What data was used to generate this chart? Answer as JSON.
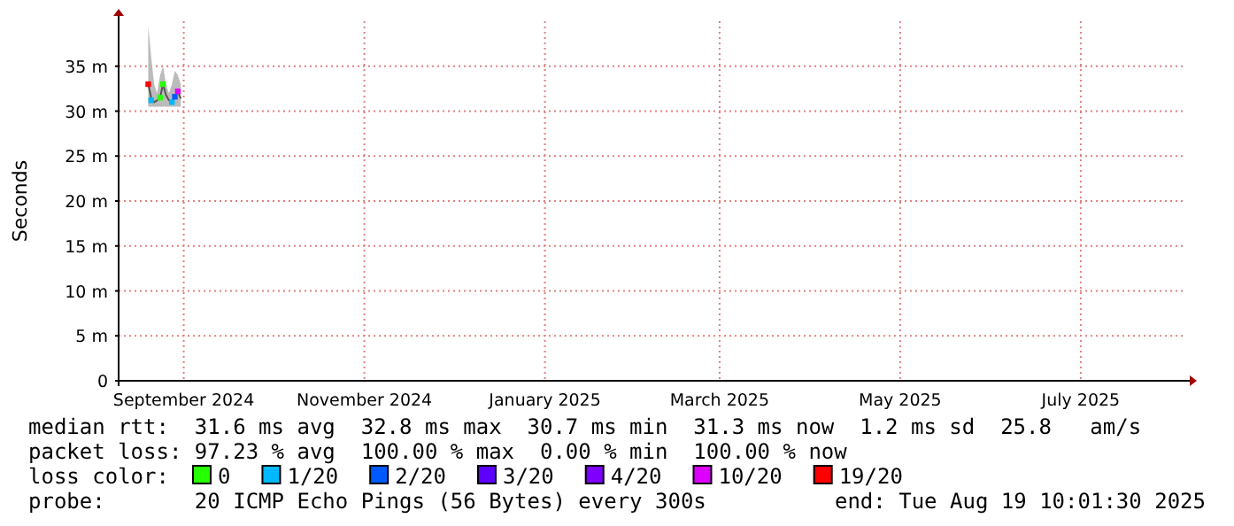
{
  "chart_data": {
    "type": "line",
    "ylabel": "Seconds",
    "legend_title": "loss color:",
    "legend": "bottom",
    "grid": true,
    "marker": "square",
    "xlim": [
      "2024-08-25",
      "2025-08-19T10:01"
    ],
    "xticks": [
      {
        "value": "2024-09-16",
        "label": "September 2024"
      },
      {
        "value": "2024-11-16",
        "label": "November 2024"
      },
      {
        "value": "2025-01-16",
        "label": "January 2025"
      },
      {
        "value": "2025-03-16",
        "label": "March 2025"
      },
      {
        "value": "2025-05-16",
        "label": "May 2025"
      },
      {
        "value": "2025-07-16",
        "label": "July 2025"
      }
    ],
    "ylim": [
      0,
      40
    ],
    "yticks": [
      0,
      {
        "value": 5,
        "label": "5 m"
      },
      {
        "value": 10,
        "label": "10 m"
      },
      {
        "value": 15,
        "label": "15 m"
      },
      {
        "value": 20,
        "label": "20 m"
      },
      {
        "value": 25,
        "label": "25 m"
      },
      {
        "value": 30,
        "label": "30 m"
      },
      {
        "value": 35,
        "label": "35 m"
      }
    ],
    "x": [
      "2024-09-04",
      "2024-09-05",
      "2024-09-06",
      "2024-09-07",
      "2024-09-08",
      "2024-09-09",
      "2024-09-10",
      "2024-09-11",
      "2024-09-12",
      "2024-09-13",
      "2024-09-14",
      "2024-09-15"
    ],
    "series": [
      {
        "color": "#555555",
        "marker": "none",
        "values": [
          33,
          31.5,
          31,
          31.2,
          31.5,
          33,
          31.8,
          31.2,
          31,
          31.6,
          32.2,
          31.4
        ],
        "lower": [
          30.5,
          30.5,
          30.5,
          30.5,
          30.5,
          30.5,
          30.5,
          30.5,
          30.5,
          30.5,
          30.5,
          30.5
        ],
        "upper": [
          39.5,
          36,
          33,
          32,
          34,
          35,
          33,
          32,
          33,
          34.5,
          34,
          33
        ]
      },
      {
        "type": "scatter",
        "name": "0",
        "color": "#26ff00",
        "x": [
          "2024-09-08",
          "2024-09-09"
        ],
        "values": [
          31.5,
          33
        ]
      },
      {
        "type": "scatter",
        "name": "1/20",
        "color": "#00b8ff",
        "x": [
          "2024-09-05",
          "2024-09-12"
        ],
        "values": [
          31.2,
          31
        ]
      },
      {
        "type": "scatter",
        "name": "2/20",
        "color": "#0059ff",
        "x": [
          "2024-09-13"
        ],
        "values": [
          31.6
        ]
      },
      {
        "type": "scatter",
        "name": "3/20",
        "color": "#5e00ff",
        "values": [
          null,
          null,
          null,
          null,
          null,
          null,
          null,
          null,
          null,
          null,
          null,
          null
        ]
      },
      {
        "type": "scatter",
        "name": "4/20",
        "color": "#7e00ff",
        "values": [
          null,
          null,
          null,
          null,
          null,
          null,
          null,
          null,
          null,
          null,
          null,
          null
        ]
      },
      {
        "type": "scatter",
        "name": "10/20",
        "color": "#dd00ff",
        "x": [
          "2024-09-14"
        ],
        "values": [
          32.2
        ]
      },
      {
        "type": "scatter",
        "name": "19/20",
        "color": "#ff0000",
        "x": [
          "2024-09-04"
        ],
        "values": [
          33
        ]
      }
    ],
    "annotations": [
      "median rtt:  31.6 ms avg  32.8 ms max  30.7 ms min  31.3 ms now  1.2 ms sd  25.8   am/s",
      "packet loss: 97.23 % avg  100.00 % max  0.00 % min  100.00 % now",
      "probe:       20 ICMP Echo Pings (56 Bytes) every 300s",
      "end: Tue Aug 19 10:01:30 2025"
    ]
  }
}
